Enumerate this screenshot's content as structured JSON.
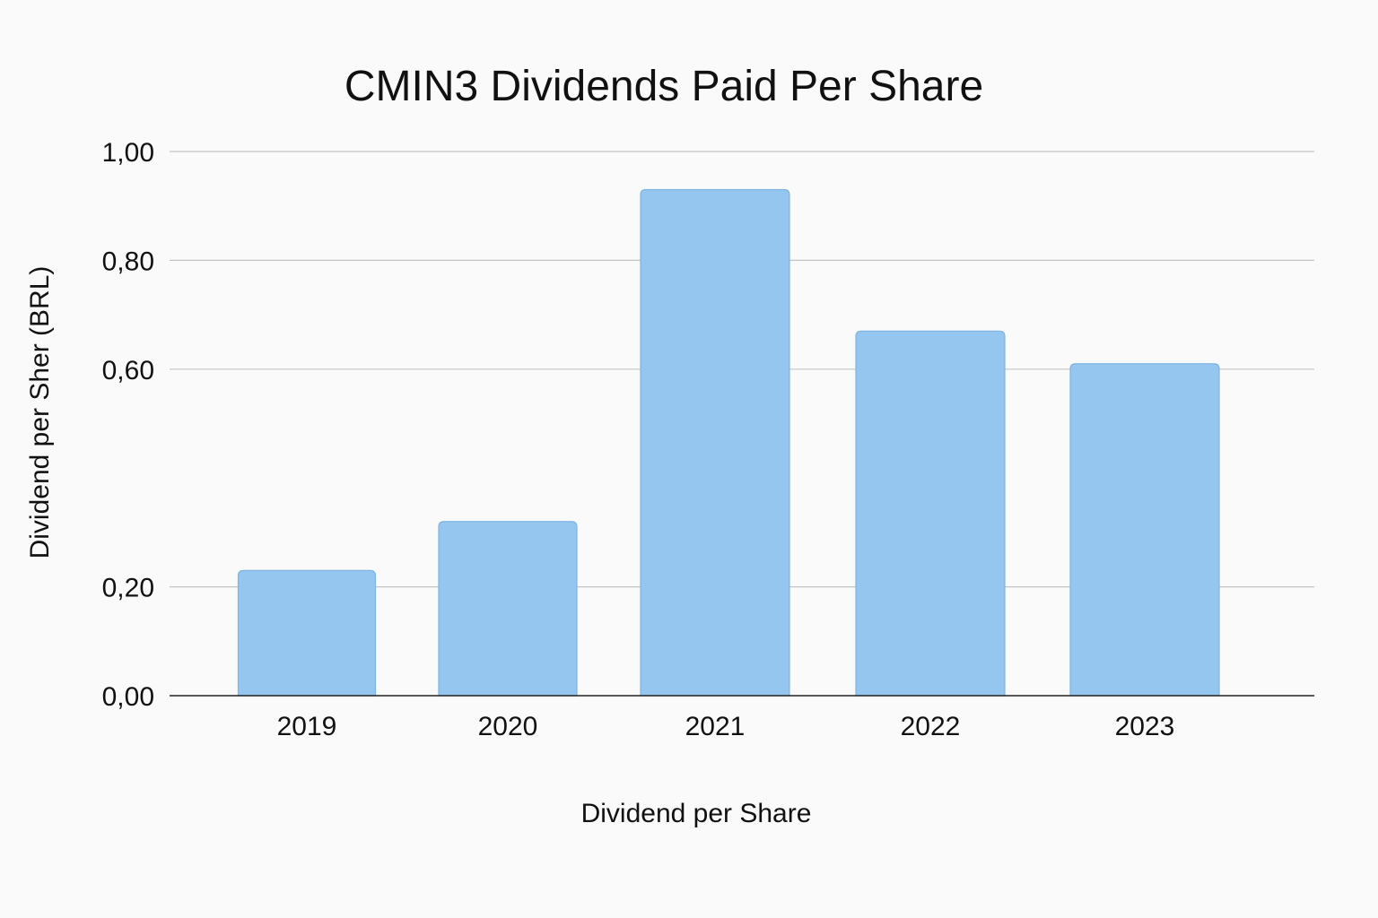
{
  "chart_data": {
    "type": "bar",
    "title": "CMIN3 Dividends Paid Per Share",
    "xlabel": "Dividend per Share",
    "ylabel": "Dividend per Sher (BRL)",
    "categories": [
      "2019",
      "2020",
      "2021",
      "2022",
      "2023"
    ],
    "series": [
      {
        "values": [
          0.23,
          0.32,
          0.93,
          0.67,
          0.61
        ]
      }
    ],
    "ylim": [
      0,
      1.0
    ],
    "yticks": [
      {
        "value": 0.0,
        "label": "0,00"
      },
      {
        "value": 0.2,
        "label": "0,20"
      },
      {
        "value": 0.6,
        "label": "0,60"
      },
      {
        "value": 0.8,
        "label": "0,80"
      },
      {
        "value": 1.0,
        "label": "1,00"
      }
    ],
    "grid": true,
    "legend": "none",
    "bar_color": "#94c6ef",
    "bar_edge_color": "#7fb4e3"
  }
}
